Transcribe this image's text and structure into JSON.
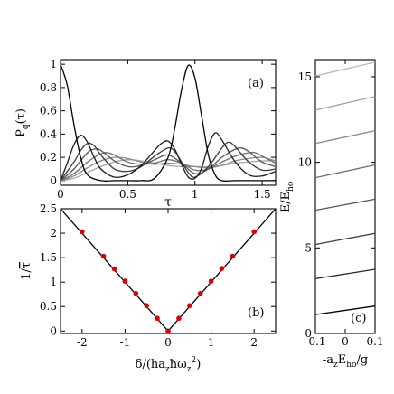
{
  "chart_data": [
    {
      "panel": "a",
      "type": "line",
      "panel_label": "(a)",
      "xlabel": "τ",
      "ylabel": "P_q(τ)",
      "ylabel_main": "P",
      "ylabel_sub": "q",
      "ylabel_suffix": "(τ)",
      "xlim": [
        0,
        1.6
      ],
      "ylim": [
        -0.04,
        1.04
      ],
      "xticks": [
        0,
        0.5,
        1,
        1.5
      ],
      "xtick_labels": [
        "0",
        "0.5",
        "1",
        "1.5"
      ],
      "yticks": [
        0,
        0.2,
        0.4,
        0.6,
        0.8,
        1
      ],
      "ytick_labels": [
        "0",
        "0.2",
        "0.4",
        "0.6",
        "0.8",
        "1"
      ],
      "series": [
        {
          "color": "#000000",
          "x": [
            0,
            0.05,
            0.1,
            0.15,
            0.2,
            0.3,
            0.4,
            0.5,
            0.6,
            0.7,
            0.8,
            0.85,
            0.9,
            0.95,
            1.0,
            1.05,
            1.1,
            1.15,
            1.2,
            1.3,
            1.4,
            1.5,
            1.6
          ],
          "y": [
            1.0,
            0.82,
            0.48,
            0.2,
            0.05,
            0.0,
            0.0,
            0.0,
            0.0,
            0.02,
            0.2,
            0.45,
            0.78,
            0.99,
            0.88,
            0.55,
            0.22,
            0.05,
            0.0,
            0.0,
            0.0,
            0.0,
            0.0
          ]
        },
        {
          "color": "#1e1e1e",
          "x": [
            0,
            0.05,
            0.1,
            0.15,
            0.2,
            0.25,
            0.3,
            0.4,
            0.5,
            0.6,
            0.7,
            0.75,
            0.8,
            0.85,
            0.9,
            0.95,
            1.0,
            1.05,
            1.1,
            1.15,
            1.2,
            1.3,
            1.4,
            1.5,
            1.6
          ],
          "y": [
            0.0,
            0.15,
            0.31,
            0.39,
            0.33,
            0.2,
            0.1,
            0.03,
            0.05,
            0.13,
            0.26,
            0.32,
            0.34,
            0.27,
            0.14,
            0.03,
            0.02,
            0.11,
            0.3,
            0.41,
            0.35,
            0.16,
            0.05,
            0.04,
            0.08
          ]
        },
        {
          "color": "#3a3a3a",
          "x": [
            0,
            0.1,
            0.15,
            0.2,
            0.25,
            0.3,
            0.4,
            0.5,
            0.6,
            0.7,
            0.8,
            0.85,
            0.9,
            0.95,
            1.0,
            1.1,
            1.2,
            1.25,
            1.3,
            1.4,
            1.5,
            1.6
          ],
          "y": [
            0.0,
            0.16,
            0.26,
            0.32,
            0.3,
            0.22,
            0.1,
            0.08,
            0.12,
            0.21,
            0.28,
            0.25,
            0.16,
            0.07,
            0.03,
            0.12,
            0.28,
            0.33,
            0.29,
            0.16,
            0.09,
            0.1
          ]
        },
        {
          "color": "#555555",
          "x": [
            0,
            0.1,
            0.2,
            0.25,
            0.3,
            0.4,
            0.5,
            0.6,
            0.7,
            0.8,
            0.9,
            1.0,
            1.1,
            1.2,
            1.3,
            1.35,
            1.4,
            1.5,
            1.6
          ],
          "y": [
            0.0,
            0.1,
            0.24,
            0.27,
            0.26,
            0.17,
            0.12,
            0.13,
            0.18,
            0.22,
            0.15,
            0.06,
            0.1,
            0.2,
            0.27,
            0.28,
            0.25,
            0.16,
            0.12
          ]
        },
        {
          "color": "#6f6f6f",
          "x": [
            0,
            0.1,
            0.2,
            0.3,
            0.35,
            0.4,
            0.5,
            0.6,
            0.7,
            0.8,
            0.9,
            1.0,
            1.1,
            1.2,
            1.3,
            1.4,
            1.45,
            1.5,
            1.6
          ],
          "y": [
            0.0,
            0.06,
            0.16,
            0.23,
            0.24,
            0.22,
            0.16,
            0.14,
            0.15,
            0.18,
            0.15,
            0.09,
            0.1,
            0.16,
            0.21,
            0.24,
            0.24,
            0.21,
            0.15
          ]
        },
        {
          "color": "#8a8a8a",
          "x": [
            0,
            0.1,
            0.2,
            0.3,
            0.4,
            0.5,
            0.6,
            0.7,
            0.8,
            0.9,
            1.0,
            1.1,
            1.2,
            1.3,
            1.4,
            1.5,
            1.6
          ],
          "y": [
            0.0,
            0.04,
            0.11,
            0.17,
            0.2,
            0.19,
            0.16,
            0.14,
            0.15,
            0.14,
            0.12,
            0.11,
            0.13,
            0.17,
            0.19,
            0.2,
            0.17
          ]
        },
        {
          "color": "#a6a6a6",
          "x": [
            0,
            0.1,
            0.2,
            0.3,
            0.4,
            0.5,
            0.6,
            0.7,
            0.8,
            0.9,
            1.0,
            1.1,
            1.2,
            1.3,
            1.4,
            1.5,
            1.6
          ],
          "y": [
            0.0,
            0.02,
            0.07,
            0.12,
            0.16,
            0.18,
            0.17,
            0.15,
            0.13,
            0.12,
            0.12,
            0.12,
            0.13,
            0.15,
            0.16,
            0.17,
            0.17
          ]
        }
      ]
    },
    {
      "panel": "b",
      "type": "scatter",
      "panel_label": "(b)",
      "xlabel": "δ/(ha_zħω_z²)",
      "xlabel_a": "δ/(ha",
      "xlabel_b": "ħω",
      "xlabel_c": "z",
      "xlabel_sup": "2",
      "xlabel_end": ")",
      "ylabel": "1/τ̄",
      "ylabel_prefix": "1/",
      "ylabel_tau": "τ",
      "xlim": [
        -2.5,
        2.5
      ],
      "ylim": [
        -0.05,
        2.5
      ],
      "xticks": [
        -2,
        -1,
        0,
        1,
        2
      ],
      "xtick_labels": [
        "-2",
        "-1",
        "0",
        "1",
        "2"
      ],
      "yticks": [
        0,
        0.5,
        1,
        1.5,
        2,
        2.5
      ],
      "ytick_labels": [
        "0",
        "0.5",
        "1",
        "1.5",
        "2",
        "2.5"
      ],
      "line": {
        "x": [
          -2.5,
          0,
          2.5
        ],
        "y": [
          2.5,
          0,
          2.5
        ],
        "color": "#000000"
      },
      "points": {
        "color": "#dd0000",
        "x": [
          -2.0,
          -1.5,
          -1.25,
          -1.0,
          -0.75,
          -0.5,
          -0.25,
          0.0,
          0.25,
          0.5,
          0.75,
          1.0,
          1.25,
          1.5,
          2.0
        ],
        "y": [
          2.03,
          1.53,
          1.27,
          1.02,
          0.77,
          0.52,
          0.26,
          0.0,
          0.26,
          0.52,
          0.77,
          1.02,
          1.28,
          1.53,
          2.03
        ]
      }
    },
    {
      "panel": "c",
      "type": "line",
      "panel_label": "(c)",
      "xlabel": "-a_zE_ho/g",
      "xlabel_a": "-a",
      "xlabel_b": "E",
      "xlabel_c": "ho",
      "xlabel_end": "/g",
      "ylabel": "E/E_ho",
      "ylabel_main": "E/E",
      "ylabel_sub": "ho",
      "xlim": [
        -0.1,
        0.1
      ],
      "ylim": [
        0,
        16
      ],
      "xticks": [
        -0.1,
        0,
        0.1
      ],
      "xtick_labels": [
        "-0.1",
        "0",
        "0.1"
      ],
      "yticks": [
        0,
        5,
        10,
        15
      ],
      "ytick_labels": [
        "0",
        "5",
        "10",
        "15"
      ],
      "series": [
        {
          "color": "#000000",
          "x": [
            -0.1,
            0.1
          ],
          "y": [
            1.1,
            1.6
          ]
        },
        {
          "color": "#262626",
          "x": [
            -0.1,
            0.1
          ],
          "y": [
            3.2,
            3.75
          ]
        },
        {
          "color": "#3c3c3c",
          "x": [
            -0.1,
            0.1
          ],
          "y": [
            5.2,
            5.85
          ]
        },
        {
          "color": "#555555",
          "x": [
            -0.1,
            0.1
          ],
          "y": [
            7.2,
            7.85
          ]
        },
        {
          "color": "#6e6e6e",
          "x": [
            -0.1,
            0.1
          ],
          "y": [
            9.1,
            9.85
          ]
        },
        {
          "color": "#878787",
          "x": [
            -0.1,
            0.1
          ],
          "y": [
            11.1,
            11.85
          ]
        },
        {
          "color": "#a0a0a0",
          "x": [
            -0.1,
            0.1
          ],
          "y": [
            13.05,
            13.85
          ]
        },
        {
          "color": "#b8b8b8",
          "x": [
            -0.1,
            0.1
          ],
          "y": [
            15.05,
            15.85
          ]
        }
      ]
    }
  ]
}
